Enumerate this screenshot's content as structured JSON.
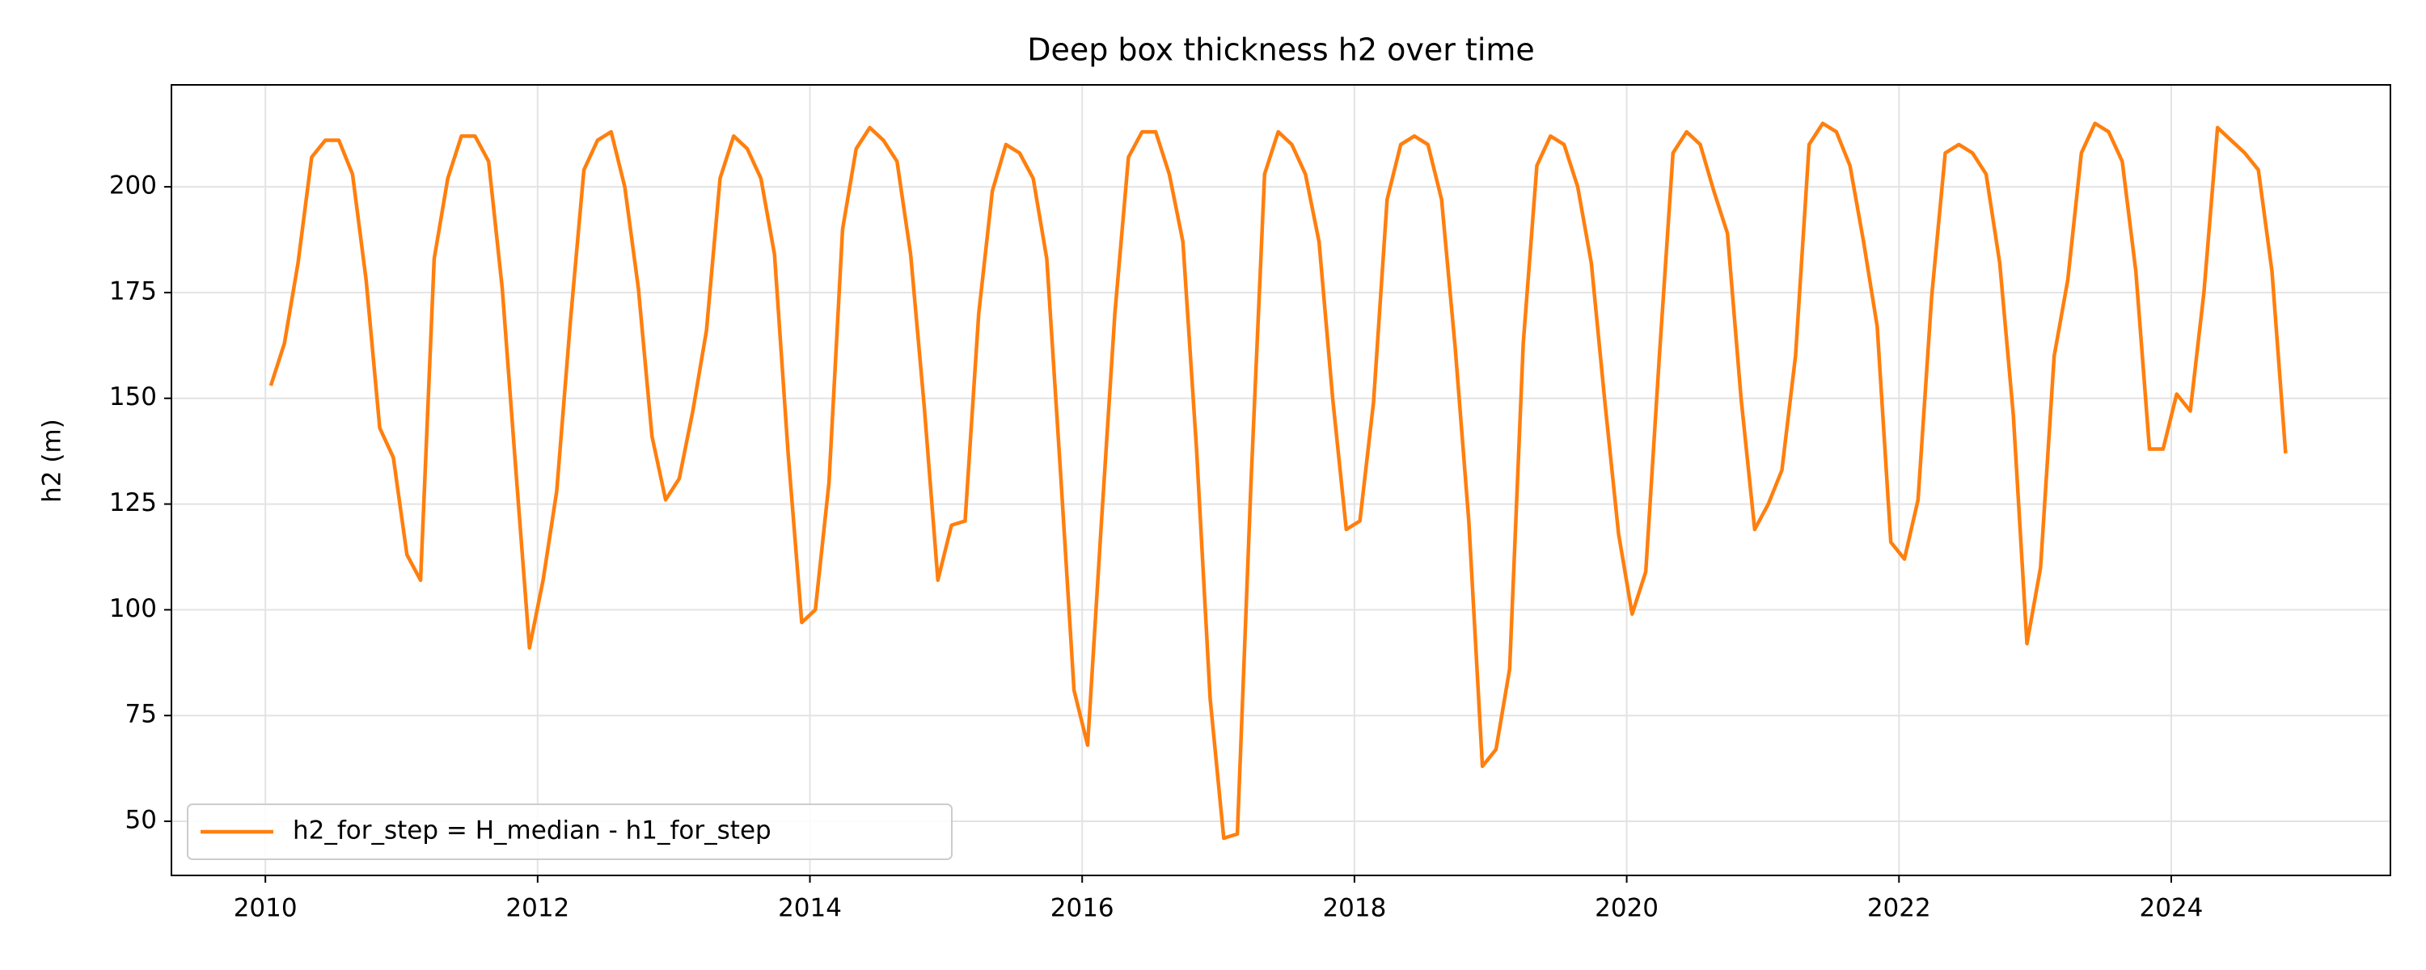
{
  "chart_data": {
    "type": "line",
    "title": "Deep box thickness h2 over time",
    "y_label": "h2 (m)",
    "x": [
      2010.04,
      2010.14,
      2010.24,
      2010.34,
      2010.44,
      2010.54,
      2010.64,
      2010.74,
      2010.84,
      2010.94,
      2011.04,
      2011.14,
      2011.24,
      2011.34,
      2011.44,
      2011.54,
      2011.64,
      2011.74,
      2011.84,
      2011.94,
      2012.04,
      2012.14,
      2012.24,
      2012.34,
      2012.44,
      2012.54,
      2012.64,
      2012.74,
      2012.84,
      2012.94,
      2013.04,
      2013.14,
      2013.24,
      2013.34,
      2013.44,
      2013.54,
      2013.64,
      2013.74,
      2013.84,
      2013.94,
      2014.04,
      2014.14,
      2014.24,
      2014.34,
      2014.44,
      2014.54,
      2014.64,
      2014.74,
      2014.84,
      2014.94,
      2015.04,
      2015.14,
      2015.24,
      2015.34,
      2015.44,
      2015.54,
      2015.64,
      2015.74,
      2015.84,
      2015.94,
      2016.04,
      2016.14,
      2016.24,
      2016.34,
      2016.44,
      2016.54,
      2016.64,
      2016.74,
      2016.84,
      2016.94,
      2017.04,
      2017.14,
      2017.24,
      2017.34,
      2017.44,
      2017.54,
      2017.64,
      2017.74,
      2017.84,
      2017.94,
      2018.04,
      2018.14,
      2018.24,
      2018.34,
      2018.44,
      2018.54,
      2018.64,
      2018.74,
      2018.84,
      2018.94,
      2019.04,
      2019.14,
      2019.24,
      2019.34,
      2019.44,
      2019.54,
      2019.64,
      2019.74,
      2019.84,
      2019.94,
      2020.04,
      2020.14,
      2020.24,
      2020.34,
      2020.44,
      2020.54,
      2020.64,
      2020.74,
      2020.84,
      2020.94,
      2021.04,
      2021.14,
      2021.24,
      2021.34,
      2021.44,
      2021.54,
      2021.64,
      2021.74,
      2021.84,
      2021.94,
      2022.04,
      2022.14,
      2022.24,
      2022.34,
      2022.44,
      2022.54,
      2022.64,
      2022.74,
      2022.84,
      2022.94,
      2023.04,
      2023.14,
      2023.24,
      2023.34,
      2023.44,
      2023.54,
      2023.64,
      2023.74,
      2023.84,
      2023.94,
      2024.04,
      2024.14,
      2024.24,
      2024.34,
      2024.44,
      2024.54,
      2024.64,
      2024.74,
      2024.84
    ],
    "series": [
      {
        "name": "h2_for_step = H_median - h1_for_step",
        "color": "#ff7f0e",
        "values": [
          153,
          163,
          182,
          207,
          211,
          211,
          203,
          178,
          143,
          136,
          113,
          107,
          183,
          202,
          212,
          212,
          206,
          176,
          133,
          91,
          107,
          128,
          168,
          204,
          211,
          213,
          200,
          176,
          141,
          126,
          131,
          147,
          166,
          202,
          212,
          209,
          202,
          184,
          137,
          97,
          100,
          130,
          190,
          209,
          214,
          211,
          206,
          184,
          148,
          107,
          120,
          121,
          170,
          199,
          210,
          208,
          202,
          183,
          133,
          81,
          68,
          120,
          170,
          207,
          213,
          213,
          203,
          187,
          138,
          79,
          46,
          47,
          130,
          203,
          213,
          210,
          203,
          187,
          150,
          119,
          121,
          149,
          197,
          210,
          212,
          210,
          197,
          162,
          121,
          63,
          67,
          86,
          163,
          205,
          212,
          210,
          200,
          182,
          149,
          118,
          99,
          109,
          160,
          208,
          213,
          210,
          199,
          189,
          150,
          119,
          125,
          133,
          160,
          210,
          215,
          213,
          205,
          187,
          167,
          116,
          112,
          126,
          174,
          208,
          210,
          208,
          203,
          182,
          146,
          92,
          110,
          160,
          178,
          208,
          215,
          213,
          206,
          180,
          138,
          138,
          151,
          147,
          175,
          214,
          211,
          208,
          204,
          180,
          137
        ]
      }
    ],
    "xlim": [
      2009.31,
      2025.61
    ],
    "xticks": [
      2010,
      2012,
      2014,
      2016,
      2018,
      2020,
      2022,
      2024
    ],
    "ylim": [
      37.2,
      224.1
    ],
    "yticks": [
      50,
      75,
      100,
      125,
      150,
      175,
      200
    ],
    "grid": true,
    "legend": "lower left"
  }
}
